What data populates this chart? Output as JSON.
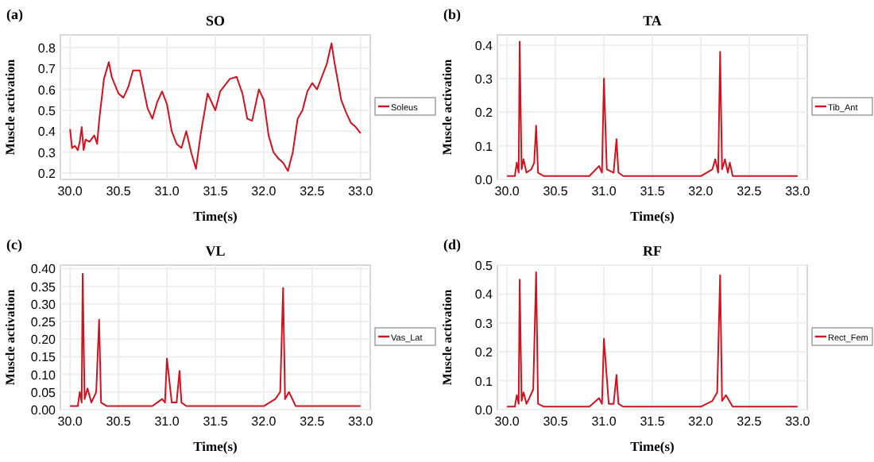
{
  "chart_data": [
    {
      "type": "line",
      "title": "SO",
      "xlabel": "Time(s)",
      "ylabel": "Muscle activation",
      "annotations": [
        "(a)"
      ],
      "grid": true,
      "legend": "right",
      "xlim": [
        29.9,
        33.1
      ],
      "xticks": [
        {
          "value": 30,
          "label": "30.0"
        },
        30.5,
        {
          "value": 31,
          "label": "31.0"
        },
        31.5,
        {
          "value": 32,
          "label": "32.0"
        },
        32.5,
        {
          "value": 33,
          "label": "33.0"
        }
      ],
      "ylim": [
        0.17,
        0.86
      ],
      "yticks": [
        0.2,
        0.3,
        0.4,
        0.5,
        0.6,
        0.7,
        0.8
      ],
      "x": [
        30.0,
        30.02,
        30.05,
        30.08,
        30.1,
        30.12,
        30.14,
        30.16,
        30.2,
        30.25,
        30.28,
        30.3,
        30.35,
        30.4,
        30.43,
        30.5,
        30.55,
        30.6,
        30.65,
        30.72,
        30.8,
        30.85,
        30.9,
        30.95,
        31.0,
        31.05,
        31.1,
        31.15,
        31.2,
        31.25,
        31.3,
        31.35,
        31.42,
        31.45,
        31.5,
        31.55,
        31.65,
        31.72,
        31.78,
        31.83,
        31.88,
        31.95,
        32.0,
        32.05,
        32.1,
        32.15,
        32.2,
        32.25,
        32.3,
        32.35,
        32.4,
        32.45,
        32.5,
        32.55,
        32.6,
        32.65,
        32.7,
        32.73,
        32.8,
        32.85,
        32.9,
        32.95,
        33.0
      ],
      "series": [
        {
          "name": "Soleus",
          "color": "#d4111f",
          "values": [
            0.41,
            0.32,
            0.33,
            0.31,
            0.35,
            0.42,
            0.31,
            0.36,
            0.35,
            0.38,
            0.34,
            0.45,
            0.65,
            0.73,
            0.66,
            0.58,
            0.56,
            0.61,
            0.69,
            0.69,
            0.51,
            0.46,
            0.54,
            0.59,
            0.53,
            0.4,
            0.34,
            0.32,
            0.4,
            0.3,
            0.22,
            0.39,
            0.58,
            0.55,
            0.5,
            0.59,
            0.65,
            0.66,
            0.58,
            0.46,
            0.45,
            0.6,
            0.55,
            0.38,
            0.3,
            0.27,
            0.25,
            0.21,
            0.3,
            0.46,
            0.5,
            0.59,
            0.63,
            0.6,
            0.66,
            0.72,
            0.82,
            0.73,
            0.55,
            0.49,
            0.44,
            0.42,
            0.39
          ]
        }
      ]
    },
    {
      "type": "line",
      "title": "TA",
      "xlabel": "Time(s)",
      "ylabel": "Muscle activation",
      "annotations": [
        "(b)"
      ],
      "grid": true,
      "legend": "right",
      "xlim": [
        29.9,
        33.1
      ],
      "xticks": [
        {
          "value": 30,
          "label": "30.0"
        },
        30.5,
        {
          "value": 31,
          "label": "31.0"
        },
        31.5,
        {
          "value": 32,
          "label": "32.0"
        },
        32.5,
        {
          "value": 33,
          "label": "33.0"
        }
      ],
      "ylim": [
        0,
        0.43
      ],
      "yticks": [
        {
          "value": 0,
          "label": "0.0"
        },
        0.1,
        0.2,
        0.3,
        0.4
      ],
      "x": [
        30.0,
        30.08,
        30.1,
        30.12,
        30.13,
        30.15,
        30.17,
        30.2,
        30.25,
        30.28,
        30.3,
        30.32,
        30.38,
        30.85,
        30.95,
        30.98,
        31.0,
        31.03,
        31.1,
        31.13,
        31.15,
        31.2,
        32.0,
        32.12,
        32.15,
        32.18,
        32.2,
        32.22,
        32.25,
        32.28,
        32.3,
        32.33,
        33.0
      ],
      "series": [
        {
          "name": "Tib_Ant",
          "color": "#d4111f",
          "values": [
            0.01,
            0.01,
            0.05,
            0.02,
            0.41,
            0.03,
            0.06,
            0.02,
            0.03,
            0.05,
            0.16,
            0.02,
            0.01,
            0.01,
            0.04,
            0.02,
            0.3,
            0.03,
            0.02,
            0.12,
            0.02,
            0.01,
            0.01,
            0.03,
            0.06,
            0.02,
            0.38,
            0.03,
            0.06,
            0.02,
            0.05,
            0.01,
            0.01
          ]
        }
      ]
    },
    {
      "type": "line",
      "title": "VL",
      "xlabel": "Time(s)",
      "ylabel": "Muscle activation",
      "annotations": [
        "(c)"
      ],
      "grid": true,
      "legend": "right",
      "xlim": [
        29.9,
        33.1
      ],
      "xticks": [
        {
          "value": 30,
          "label": "30.0"
        },
        30.5,
        {
          "value": 31,
          "label": "31.0"
        },
        31.5,
        {
          "value": 32,
          "label": "32.0"
        },
        32.5,
        {
          "value": 33,
          "label": "33.0"
        }
      ],
      "ylim": [
        0,
        0.41
      ],
      "yticks": [
        {
          "value": 0,
          "label": "0.00"
        },
        0.05,
        {
          "value": 0.1,
          "label": "0.10"
        },
        0.15,
        {
          "value": 0.2,
          "label": "0.20"
        },
        0.25,
        {
          "value": 0.3,
          "label": "0.30"
        },
        0.35,
        {
          "value": 0.4,
          "label": "0.40"
        }
      ],
      "x": [
        30.0,
        30.08,
        30.1,
        30.12,
        30.13,
        30.15,
        30.18,
        30.22,
        30.27,
        30.3,
        30.32,
        30.38,
        30.85,
        30.95,
        30.98,
        31.0,
        31.05,
        31.1,
        31.13,
        31.15,
        31.2,
        32.0,
        32.12,
        32.17,
        32.2,
        32.22,
        32.26,
        32.33,
        33.0
      ],
      "series": [
        {
          "name": "Vas_Lat",
          "color": "#d4111f",
          "values": [
            0.01,
            0.01,
            0.05,
            0.02,
            0.385,
            0.03,
            0.06,
            0.02,
            0.05,
            0.255,
            0.02,
            0.01,
            0.01,
            0.03,
            0.02,
            0.145,
            0.02,
            0.02,
            0.11,
            0.02,
            0.01,
            0.01,
            0.03,
            0.05,
            0.345,
            0.03,
            0.05,
            0.01,
            0.01
          ]
        }
      ]
    },
    {
      "type": "line",
      "title": "RF",
      "xlabel": "Time(s)",
      "ylabel": "Muscle activation",
      "annotations": [
        "(d)"
      ],
      "grid": true,
      "legend": "right",
      "xlim": [
        29.9,
        33.1
      ],
      "xticks": [
        {
          "value": 30,
          "label": "30.0"
        },
        30.5,
        {
          "value": 31,
          "label": "31.0"
        },
        31.5,
        {
          "value": 32,
          "label": "32.0"
        },
        32.5,
        {
          "value": 33,
          "label": "33.0"
        }
      ],
      "ylim": [
        0,
        0.5
      ],
      "yticks": [
        {
          "value": 0,
          "label": "0.0"
        },
        0.1,
        0.2,
        0.3,
        0.4,
        0.5
      ],
      "x": [
        30.0,
        30.08,
        30.1,
        30.12,
        30.13,
        30.15,
        30.17,
        30.2,
        30.23,
        30.27,
        30.3,
        30.32,
        30.38,
        30.85,
        30.95,
        30.98,
        31.0,
        31.05,
        31.1,
        31.13,
        31.15,
        31.2,
        32.0,
        32.12,
        32.17,
        32.2,
        32.22,
        32.26,
        32.33,
        33.0
      ],
      "series": [
        {
          "name": "Rect_Fem",
          "color": "#d4111f",
          "values": [
            0.01,
            0.01,
            0.05,
            0.02,
            0.45,
            0.03,
            0.06,
            0.02,
            0.04,
            0.07,
            0.475,
            0.02,
            0.01,
            0.01,
            0.04,
            0.02,
            0.245,
            0.02,
            0.02,
            0.12,
            0.02,
            0.01,
            0.01,
            0.03,
            0.06,
            0.465,
            0.03,
            0.05,
            0.01,
            0.01
          ]
        }
      ]
    }
  ]
}
